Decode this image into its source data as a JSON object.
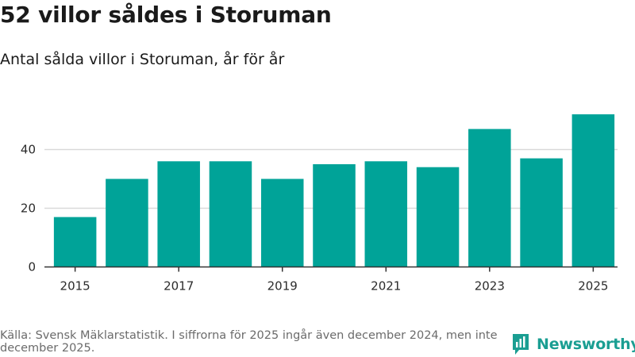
{
  "header": {
    "title": "52 villor såldes i Storuman",
    "subtitle": "Antal sålda villor i Storuman, år för år"
  },
  "footer": {
    "source_note": "Källa: Svensk Mäklarstatistik. I siffrorna för 2025 ingår även december 2024, men inte december 2025.",
    "brand_name": "Newsworthy",
    "brand_icon": "bar-chart-logo-icon"
  },
  "colors": {
    "bar": "#00a398",
    "grid": "#d9d9d9",
    "axis": "#333333",
    "brand": "#1a9e92"
  },
  "chart_data": {
    "type": "bar",
    "title": "52 villor såldes i Storuman",
    "subtitle": "Antal sålda villor i Storuman, år för år",
    "xlabel": "",
    "ylabel": "",
    "categories": [
      "2015",
      "2016",
      "2017",
      "2018",
      "2019",
      "2020",
      "2021",
      "2022",
      "2023",
      "2024",
      "2025"
    ],
    "values": [
      17,
      30,
      36,
      36,
      30,
      35,
      36,
      34,
      47,
      37,
      52
    ],
    "x_tick_labels": [
      "2015",
      "2017",
      "2019",
      "2021",
      "2023",
      "2025"
    ],
    "y_ticks": [
      0,
      20,
      40
    ],
    "ylim": [
      0,
      58
    ],
    "grid": true,
    "legend": "none"
  }
}
